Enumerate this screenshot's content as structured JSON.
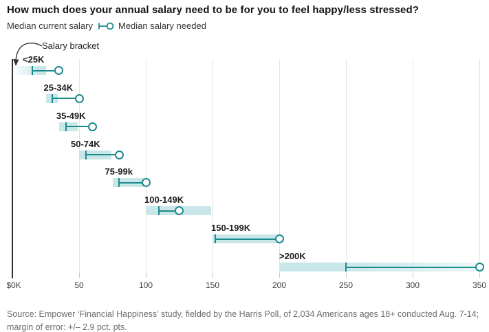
{
  "title": "How much does your annual salary need to be for you to feel happy/less stressed?",
  "legend": {
    "current_label": "Median current salary",
    "needed_label": "Median salary needed",
    "marker_icon": "tick-line-circle"
  },
  "annotation": {
    "label": "Salary bracket"
  },
  "colors": {
    "accent_teal": "#1b8a8f",
    "band_teal": "#c9e7e9",
    "gridline": "#e4e4e4",
    "axis_line": "#2d2d2d",
    "title_text": "#141414",
    "muted_text": "#6e6e6e"
  },
  "chart_data": {
    "type": "dumbbell",
    "title": "How much does your annual salary need to be for you to feel happy/less stressed?",
    "unit": "thousand USD per year",
    "grid": true,
    "legend_position": "top-left",
    "x_axis": {
      "tick_labels": [
        "$0K",
        "50",
        "100",
        "150",
        "200",
        "250",
        "300",
        "350"
      ],
      "tick_values": [
        0,
        50,
        100,
        150,
        200,
        250,
        300,
        350
      ],
      "range": [
        0,
        355
      ]
    },
    "rows": [
      {
        "bracket": "<25K",
        "range": [
          0,
          25
        ],
        "open_end": "left",
        "median_current": 15,
        "median_needed": 35
      },
      {
        "bracket": "25-34K",
        "range": [
          25,
          34
        ],
        "open_end": null,
        "median_current": 30,
        "median_needed": 50
      },
      {
        "bracket": "35-49K",
        "range": [
          35,
          49
        ],
        "open_end": null,
        "median_current": 40,
        "median_needed": 60
      },
      {
        "bracket": "50-74K",
        "range": [
          50,
          74
        ],
        "open_end": null,
        "median_current": 55,
        "median_needed": 80
      },
      {
        "bracket": "75-99k",
        "range": [
          75,
          99
        ],
        "open_end": null,
        "median_current": 80,
        "median_needed": 100
      },
      {
        "bracket": "100-149K",
        "range": [
          100,
          149
        ],
        "open_end": null,
        "median_current": 110,
        "median_needed": 125
      },
      {
        "bracket": "150-199K",
        "range": [
          150,
          199
        ],
        "open_end": null,
        "median_current": 152,
        "median_needed": 200
      },
      {
        "bracket": ">200K",
        "range": [
          200,
          350
        ],
        "open_end": "right",
        "median_current": 250,
        "median_needed": 350
      }
    ]
  },
  "source_line1": "Source: Empower ‘Financial Happiness’ study, fielded by the Harris Poll, of 2,034 Americans ages 18+ conducted Aug. 7-14;",
  "source_line2": "margin of error: +/– 2.9 pct. pts."
}
